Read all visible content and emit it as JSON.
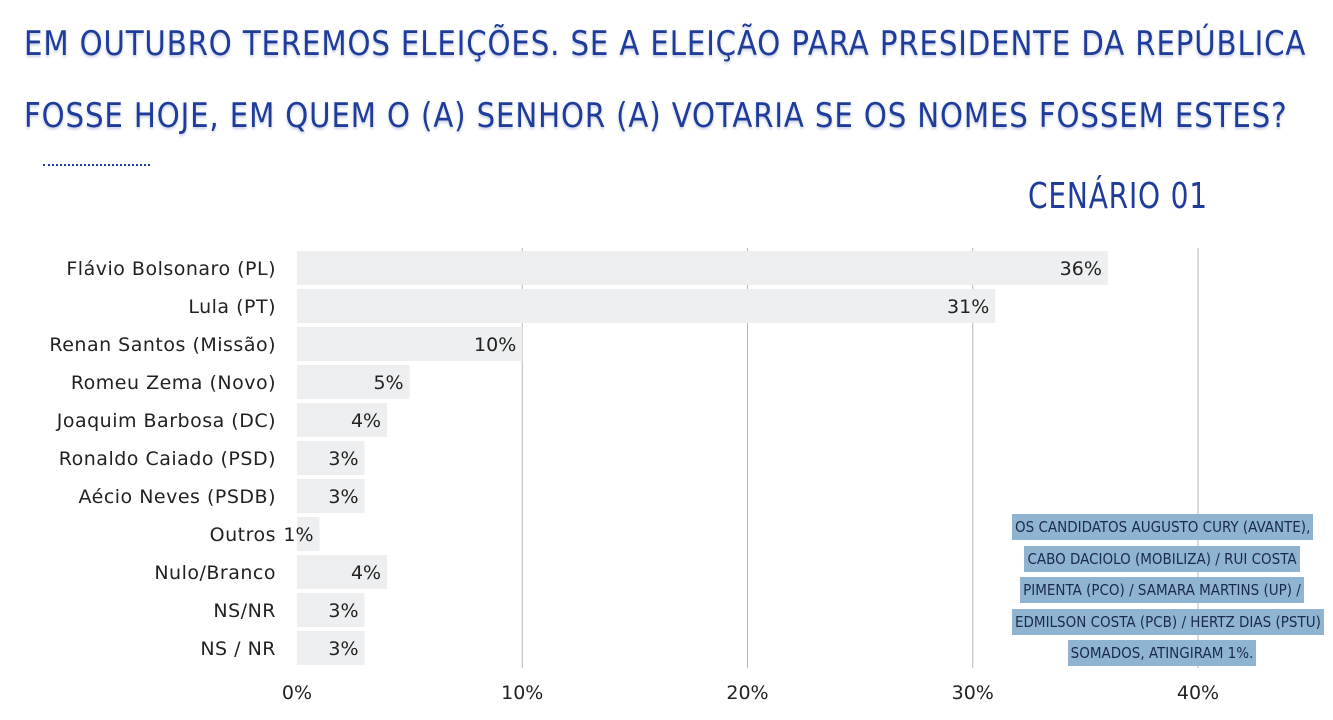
{
  "title_lines": [
    "EM OUTUBRO TEREMOS ELEIÇÕES. SE A ELEIÇÃO PARA PRESIDENTE DA REPÚBLICA",
    "FOSSE HOJE, EM QUEM O (A) SENHOR (A) VOTARIA SE OS NOMES FOSSEM ESTES?"
  ],
  "scenario_label": "CENÁRIO 01",
  "note_lines": [
    "OS CANDIDATOS AUGUSTO CURY (AVANTE),",
    "CABO DACIOLO (MOBILIZA) / RUI COSTA",
    "PIMENTA (PCO) / SAMARA MARTINS (UP) /",
    "EDMILSON COSTA (PCB) / HERTZ DIAS (PSTU)",
    "SOMADOS, ATINGIRAM 1%."
  ],
  "colors": {
    "title": "#1f3c9b",
    "bar": "#eeeff0",
    "gridline": "#b5b5b5",
    "note_highlight": "#8fb4d2"
  },
  "chart_data": {
    "type": "bar",
    "orientation": "horizontal",
    "categories": [
      "Flávio Bolsonaro (PL)",
      "Lula (PT)",
      "Renan Santos (Missão)",
      "Romeu Zema (Novo)",
      "Joaquim Barbosa (DC)",
      "Ronaldo Caiado (PSD)",
      "Aécio Neves (PSDB)",
      "Outros",
      "Nulo/Branco",
      "NS/NR",
      "NS / NR"
    ],
    "values": [
      36,
      31,
      10,
      5,
      4,
      3,
      3,
      1,
      4,
      3,
      3
    ],
    "value_labels": [
      "36%",
      "31%",
      "10%",
      "5%",
      "4%",
      "3%",
      "3%",
      "1%",
      "4%",
      "3%",
      "3%"
    ],
    "xlim": [
      0,
      40
    ],
    "xticks": [
      0,
      10,
      20,
      30,
      40
    ],
    "xtick_labels": [
      "0%",
      "10%",
      "20%",
      "30%",
      "40%"
    ],
    "grid": true
  }
}
